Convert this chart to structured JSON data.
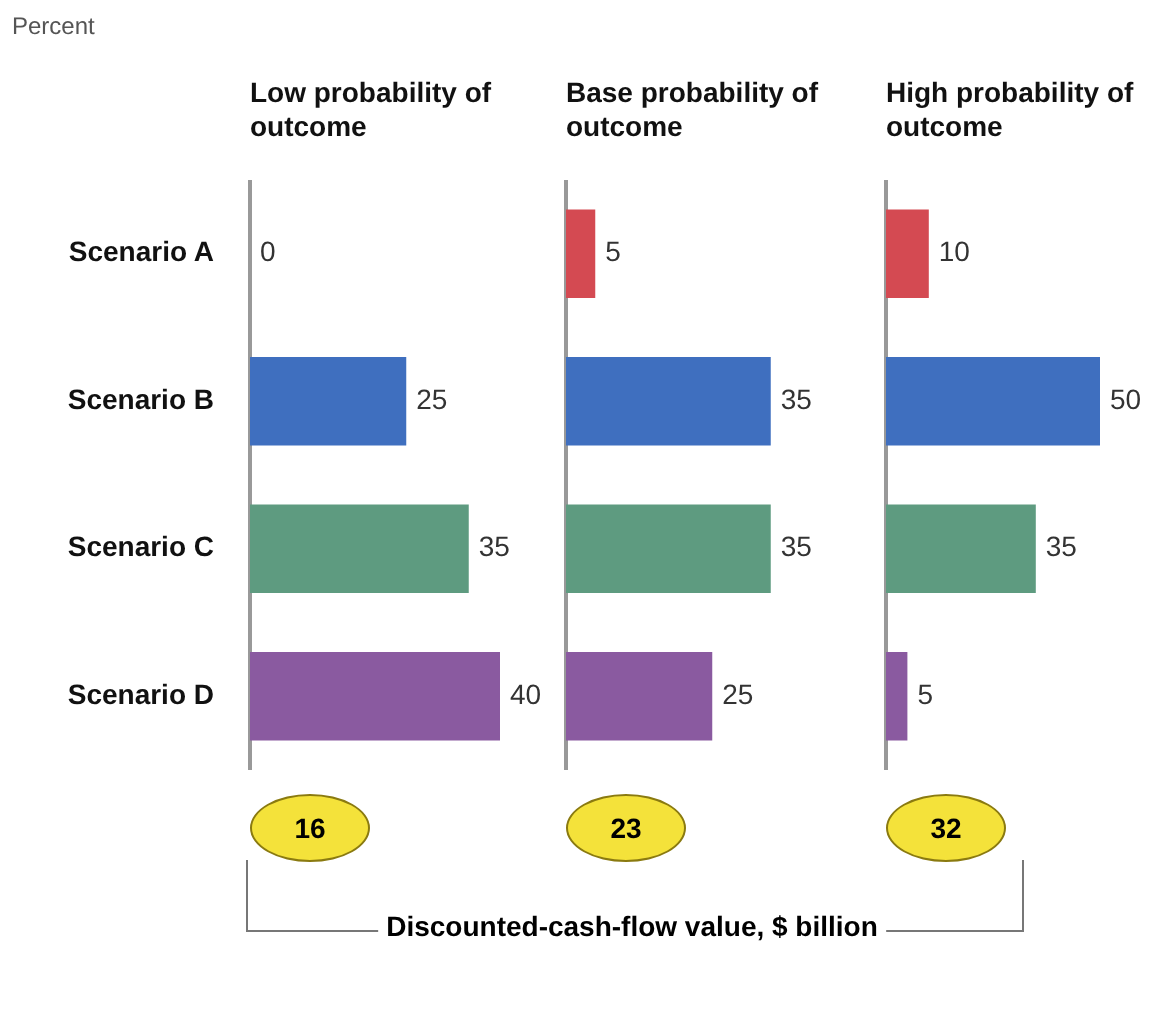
{
  "chart_data": [
    {
      "type": "bar",
      "orientation": "horizontal",
      "title": "Low probability of outcome",
      "ylabel": "Percent",
      "categories": [
        "Scenario A",
        "Scenario B",
        "Scenario C",
        "Scenario D"
      ],
      "values": [
        0,
        25,
        35,
        40
      ],
      "colors": [
        "#d44a52",
        "#3f6fbf",
        "#5e9b80",
        "#8a5aa0"
      ],
      "data_labels": true,
      "tick_labels": "y",
      "legend": false,
      "annotations": [
        "16"
      ]
    },
    {
      "type": "bar",
      "orientation": "horizontal",
      "title": "Base probability of outcome",
      "categories": [
        null,
        null,
        null,
        null
      ],
      "values": [
        5,
        35,
        35,
        25
      ],
      "colors": [
        "#d44a52",
        "#3f6fbf",
        "#5e9b80",
        "#8a5aa0"
      ],
      "data_labels": true,
      "tick_labels": false,
      "legend": false,
      "annotations": [
        "23",
        "Discounted-cash-flow value, $ billion"
      ]
    },
    {
      "type": "bar",
      "orientation": "horizontal",
      "title": "High probability of outcome",
      "categories": [
        null,
        null,
        null,
        null
      ],
      "values": [
        10,
        50,
        35,
        5
      ],
      "colors": [
        "#d44a52",
        "#3f6fbf",
        "#5e9b80",
        "#8a5aa0"
      ],
      "data_labels": true,
      "tick_labels": false,
      "legend": false,
      "annotations": [
        "32"
      ]
    }
  ]
}
